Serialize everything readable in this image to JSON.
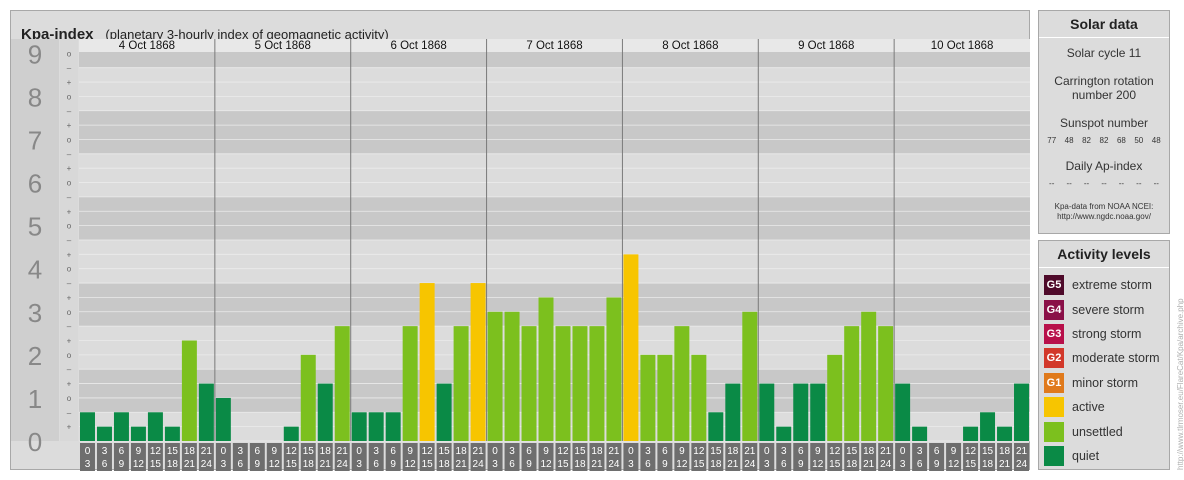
{
  "header": {
    "title": "Kpa-index",
    "subtitle": "(planetary 3-hourly index of geomagnetic activity)"
  },
  "chart_data": {
    "type": "bar",
    "yticks": [
      0,
      1,
      2,
      3,
      4,
      5,
      6,
      7,
      8,
      9
    ],
    "sub_ticks": [
      "o",
      "+",
      "–"
    ],
    "ylim": [
      0,
      9.333
    ],
    "days": [
      "4 Oct 1868",
      "5 Oct 1868",
      "6 Oct 1868",
      "7 Oct 1868",
      "8 Oct 1868",
      "9 Oct 1868",
      "10 Oct 1868"
    ],
    "interval_starts": [
      "0",
      "3",
      "6",
      "9",
      "12",
      "15",
      "18",
      "21"
    ],
    "interval_ends": [
      "3",
      "6",
      "9",
      "12",
      "15",
      "18",
      "21",
      "24"
    ],
    "values": [
      0.667,
      0.333,
      0.667,
      0.333,
      0.667,
      0.333,
      2.333,
      1.333,
      1.0,
      0.0,
      0.0,
      0.0,
      0.333,
      2.0,
      1.333,
      2.667,
      0.667,
      0.667,
      0.667,
      2.667,
      3.667,
      1.333,
      2.667,
      3.667,
      3.0,
      3.0,
      2.667,
      3.333,
      2.667,
      2.667,
      2.667,
      3.333,
      4.333,
      2.0,
      2.0,
      2.667,
      2.0,
      0.667,
      1.333,
      3.0,
      1.333,
      0.333,
      1.333,
      1.333,
      2.0,
      2.667,
      3.0,
      2.667,
      1.333,
      0.333,
      0.0,
      0.0,
      0.333,
      0.667,
      0.333,
      1.333
    ],
    "level_colors": {
      "quiet": "#0a8a46",
      "unsettled": "#7cc01e",
      "active": "#f7c500"
    },
    "background_colors": {
      "band_light": "#dcdcdc",
      "band_dark": "#c8c8c8",
      "axis_cell": "#6e6e6e"
    }
  },
  "solar_data": {
    "title": "Solar data",
    "cycle": "Solar cycle 11",
    "carrington_label": "Carrington rotation",
    "carrington_value": "number 200",
    "sunspot_label": "Sunspot number",
    "sunspots": [
      "77",
      "48",
      "82",
      "82",
      "68",
      "50",
      "48"
    ],
    "ap_label": "Daily Ap-index",
    "ap_values": [
      "--",
      "--",
      "--",
      "--",
      "--",
      "--",
      "--"
    ],
    "credit_line1": "Kpa-data from NOAA NCEI:",
    "credit_line2": "http://www.ngdc.noaa.gov/"
  },
  "activity_levels": {
    "title": "Activity levels",
    "items": [
      {
        "code": "G5",
        "label": "extreme storm",
        "color": "#4e0a2a"
      },
      {
        "code": "G4",
        "label": "severe storm",
        "color": "#8a1048"
      },
      {
        "code": "G3",
        "label": "strong storm",
        "color": "#b8104a"
      },
      {
        "code": "G2",
        "label": "moderate storm",
        "color": "#d2382a"
      },
      {
        "code": "G1",
        "label": "minor storm",
        "color": "#e07a1c"
      },
      {
        "code": "",
        "label": "active",
        "color": "#f7c500"
      },
      {
        "code": "",
        "label": "unsettled",
        "color": "#7cc01e"
      },
      {
        "code": "",
        "label": "quiet",
        "color": "#0a8a46"
      }
    ]
  },
  "watermark": "http://www.tlrmoser.eu/FlareCat/Kpa/archive.php"
}
